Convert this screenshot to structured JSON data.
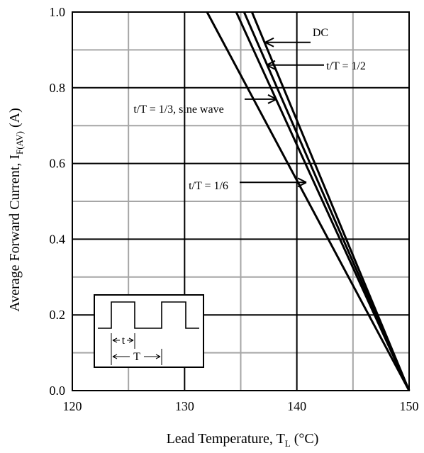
{
  "chart_data": {
    "type": "line",
    "xlabel": "Lead Temperature, T",
    "xlabel_sub": "L",
    "xlabel_unit": " (°C)",
    "ylabel": "Average Forward Current, I",
    "ylabel_sub": "F(AV)",
    "ylabel_unit": " (A)",
    "xlim": [
      120,
      150
    ],
    "ylim": [
      0.0,
      1.0
    ],
    "x_ticks": [
      120,
      130,
      140,
      150
    ],
    "x_tick_labels": [
      "120",
      "130",
      "140",
      "150"
    ],
    "y_ticks": [
      0.0,
      0.2,
      0.4,
      0.6,
      0.8,
      1.0
    ],
    "y_tick_labels": [
      "0.0",
      "0.2",
      "0.4",
      "0.6",
      "0.8",
      "1.0"
    ],
    "grid": true,
    "series": [
      {
        "name": "DC",
        "x": [
          136.0,
          150.0
        ],
        "y": [
          1.0,
          0.0
        ]
      },
      {
        "name": "t/T = 1/2",
        "x": [
          135.3,
          150.0
        ],
        "y": [
          1.0,
          0.0
        ]
      },
      {
        "name": "t/T = 1/3, sine wave",
        "x": [
          134.6,
          150.0
        ],
        "y": [
          1.0,
          0.0
        ]
      },
      {
        "name": "t/T = 1/6",
        "x": [
          132.0,
          150.0
        ],
        "y": [
          1.0,
          0.0
        ]
      }
    ],
    "annotations": [
      {
        "text": "DC",
        "series": 0,
        "x": 137.2,
        "y": 0.92
      },
      {
        "text": "t/T = 1/2",
        "series": 1,
        "x": 137.5,
        "y": 0.86
      },
      {
        "text": "t/T = 1/3, sine wave",
        "series": 2,
        "x": 136.8,
        "y": 0.77
      },
      {
        "text": "t/T = 1/6",
        "series": 3,
        "x": 139.3,
        "y": 0.55
      }
    ],
    "inset": {
      "period_label": "T",
      "pulse_label": "t"
    }
  }
}
